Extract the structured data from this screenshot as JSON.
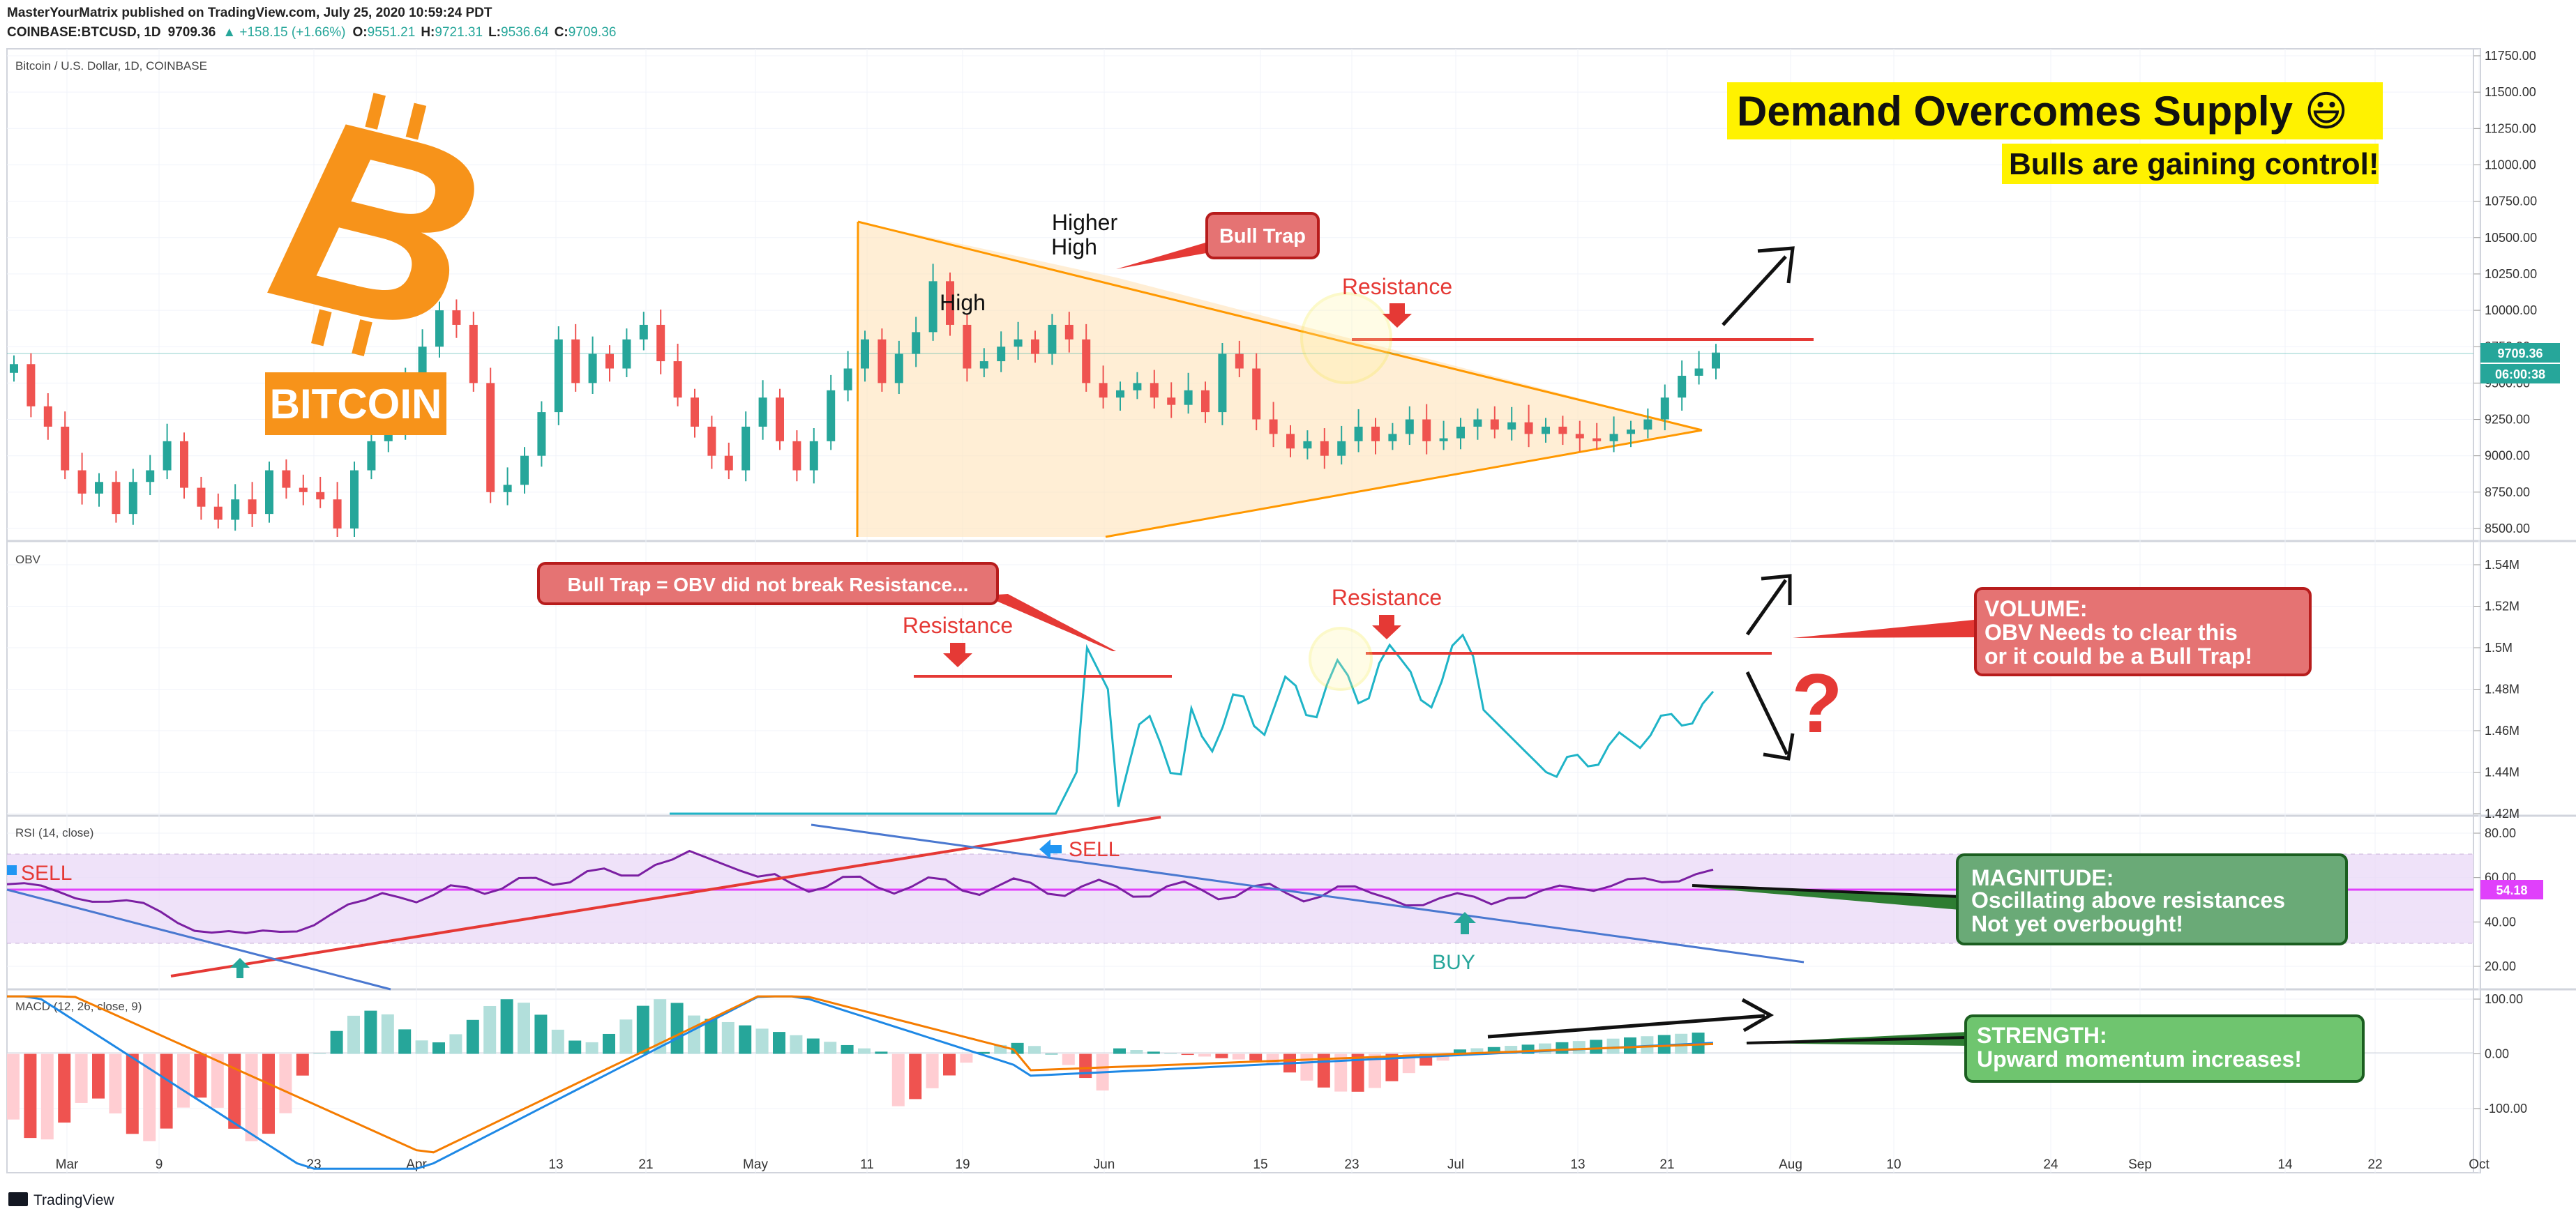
{
  "header": {
    "line1": "MasterYourMatrix published on TradingView.com, July 25, 2020 10:59:24 PDT",
    "line2": {
      "symbol": "COINBASE:BTCUSD, 1D",
      "price": "9709.36",
      "change": "▲ +158.15 (+1.66%)",
      "o_label": "O:",
      "o": "9551.21",
      "h_label": "H:",
      "h": "9721.31",
      "l_label": "L:",
      "l": "9536.64",
      "c_label": "C:",
      "c": "9709.36"
    }
  },
  "footer": {
    "brand": "TradingView"
  },
  "colors": {
    "up": "#26a69a",
    "down": "#ef5350",
    "obv": "#1fb4c7",
    "rsi": "#7b1fa2",
    "macd": "#1e88e5",
    "signal": "#f57c00",
    "resistance": "#e53935",
    "triangle": "#ff9800"
  },
  "panes": {
    "price": {
      "label": "Bitcoin / U.S. Dollar, 1D, COINBASE",
      "last_price": "9709.36",
      "countdown": "06:00:38"
    },
    "obv": {
      "label": "OBV"
    },
    "rsi": {
      "label": "RSI (14, close)",
      "last": "54.18"
    },
    "macd": {
      "label": "MACD (12, 26, close, 9)"
    }
  },
  "annotations": {
    "bitcoin_word": "BITCOIN",
    "demand_title": "Demand Overcomes Supply 😃",
    "bulls": "Bulls are gaining control!",
    "higher_high_1": "Higher",
    "higher_high_2": "High",
    "high": "High",
    "bull_trap": "Bull Trap",
    "resistance_price": "Resistance",
    "obv_trap": "Bull Trap = OBV did not break Resistance...",
    "resistance_obv_1": "Resistance",
    "resistance_obv_2": "Resistance",
    "volume_1": "VOLUME:",
    "volume_2": "OBV Needs to clear this",
    "volume_3": "or it could be a Bull Trap!",
    "question": "?",
    "sell_left": "SELL",
    "sell_mid": "SELL",
    "buy": "BUY",
    "magnitude_1": "MAGNITUDE:",
    "magnitude_2": "Oscillating above resistances",
    "magnitude_3": "Not yet overbought!",
    "strength_1": "STRENGTH:",
    "strength_2": "Upward momentum increases!"
  },
  "chart_data": [
    {
      "type": "candlestick",
      "title": "Bitcoin / U.S. Dollar, 1D, COINBASE",
      "ylim": [
        8450,
        11800
      ],
      "y_ticks": [
        "11750.00",
        "11500.00",
        "11250.00",
        "11000.00",
        "10750.00",
        "10500.00",
        "10250.00",
        "10000.00",
        "9750.00",
        "9500.00",
        "9250.00",
        "9000.00",
        "8750.00",
        "8500.00"
      ],
      "x_ticks": [
        "Mar",
        "9",
        "23",
        "Apr",
        "13",
        "21",
        "May",
        "11",
        "19",
        "Jun",
        "15",
        "23",
        "Jul",
        "13",
        "21",
        "Aug",
        "10",
        "24",
        "Sep",
        "14",
        "22",
        "Oct"
      ],
      "closes_approx": [
        9630,
        9340,
        9200,
        8900,
        8740,
        8820,
        8600,
        8820,
        8900,
        9100,
        8780,
        8650,
        8560,
        8700,
        8600,
        8900,
        8780,
        8750,
        8700,
        8500,
        8900,
        9100,
        9200,
        9500,
        9750,
        10000,
        9900,
        9500,
        8750,
        8800,
        9000,
        9300,
        9800,
        9500,
        9700,
        9600,
        9800,
        9900,
        9650,
        9400,
        9200,
        9000,
        8900,
        9200,
        9400,
        9100,
        8900,
        9100,
        9450,
        9600,
        9800,
        9500,
        9700,
        9850,
        10200,
        9900,
        9600,
        9650,
        9750,
        9800,
        9700,
        9900,
        9800,
        9500,
        9400,
        9450,
        9500,
        9400,
        9350,
        9450,
        9300,
        9700,
        9600,
        9250,
        9150,
        9050,
        9100,
        9000,
        9100,
        9200,
        9100,
        9150,
        9250,
        9100,
        9120,
        9200,
        9250,
        9180,
        9230,
        9150,
        9200,
        9150,
        9120,
        9100,
        9150,
        9180,
        9250,
        9400,
        9550,
        9600,
        9709.36
      ]
    },
    {
      "type": "line",
      "title": "OBV",
      "ylim": [
        1.42,
        1.55
      ],
      "y_ticks": [
        "1.54M",
        "1.52M",
        "1.5M",
        "1.48M",
        "1.46M",
        "1.44M",
        "1.42M"
      ],
      "resistance": [
        1.487,
        1.498
      ]
    },
    {
      "type": "line",
      "title": "RSI (14, close)",
      "ylim": [
        10,
        90
      ],
      "y_ticks": [
        "80.00",
        "60.00",
        "40.00",
        "20.00"
      ],
      "last": 54.18,
      "band": [
        30,
        70
      ]
    },
    {
      "type": "bar",
      "title": "MACD (12, 26, close, 9)",
      "ylim": [
        -220,
        110
      ],
      "y_ticks": [
        "100.00",
        "0.00",
        "-100.00"
      ],
      "series": [
        {
          "name": "MACD"
        },
        {
          "name": "Signal"
        },
        {
          "name": "Histogram"
        }
      ]
    }
  ]
}
